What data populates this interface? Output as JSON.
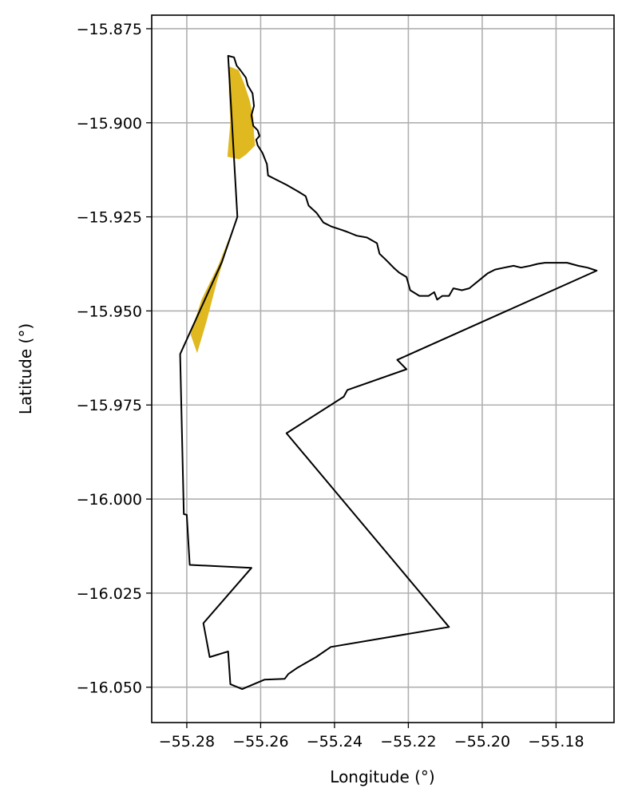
{
  "chart_data": {
    "type": "map",
    "xlabel": "Longitude (°)",
    "ylabel": "Latitude (°)",
    "xlim": [
      -55.2895,
      -55.1643
    ],
    "ylim": [
      -16.0594,
      -15.8714
    ],
    "x_ticks": [
      -55.28,
      -55.26,
      -55.24,
      -55.22,
      -55.2,
      -55.18
    ],
    "x_tick_labels": [
      "−55.28",
      "−55.26",
      "−55.24",
      "−55.22",
      "−55.20",
      "−55.18"
    ],
    "y_ticks": [
      -15.875,
      -15.9,
      -15.925,
      -15.95,
      -15.975,
      -16.0,
      -16.025,
      -16.05
    ],
    "y_tick_labels": [
      "−15.875",
      "−15.900",
      "−15.925",
      "−15.950",
      "−15.975",
      "−16.000",
      "−16.025",
      "−16.050"
    ],
    "grid": true,
    "colors": {
      "boundary": "#000000",
      "highlight": "#e0b820",
      "grid": "#b0b0b0"
    },
    "highlight_polygons": [
      [
        [
          -55.2685,
          -15.885
        ],
        [
          -55.266,
          -15.886
        ],
        [
          -55.2645,
          -15.8895
        ],
        [
          -55.263,
          -15.894
        ],
        [
          -55.262,
          -15.8985
        ],
        [
          -55.2618,
          -15.903
        ],
        [
          -55.2615,
          -15.906
        ],
        [
          -55.264,
          -15.9085
        ],
        [
          -55.2658,
          -15.9097
        ],
        [
          -55.269,
          -15.909
        ],
        [
          -55.2682,
          -15.9
        ],
        [
          -55.2686,
          -15.892
        ]
      ],
      [
        [
          -55.267,
          -15.9268
        ],
        [
          -55.269,
          -15.933
        ],
        [
          -55.2718,
          -15.942
        ],
        [
          -55.2747,
          -15.953
        ],
        [
          -55.2772,
          -15.9612
        ],
        [
          -55.279,
          -15.9562
        ],
        [
          -55.276,
          -15.947
        ],
        [
          -55.2715,
          -15.938
        ]
      ]
    ],
    "boundary": [
      [
        -55.2688,
        -15.8822
      ],
      [
        -55.2672,
        -15.8826
      ],
      [
        -55.2665,
        -15.8848
      ],
      [
        -55.2655,
        -15.886
      ],
      [
        -55.264,
        -15.888
      ],
      [
        -55.2635,
        -15.89
      ],
      [
        -55.2622,
        -15.8922
      ],
      [
        -55.2618,
        -15.8955
      ],
      [
        -55.2625,
        -15.898
      ],
      [
        -55.262,
        -15.9008
      ],
      [
        -55.2608,
        -15.902
      ],
      [
        -55.2603,
        -15.9035
      ],
      [
        -55.2612,
        -15.9045
      ],
      [
        -55.2608,
        -15.906
      ],
      [
        -55.2595,
        -15.908
      ],
      [
        -55.2583,
        -15.911
      ],
      [
        -55.258,
        -15.914
      ],
      [
        -55.256,
        -15.915
      ],
      [
        -55.253,
        -15.9165
      ],
      [
        -55.2498,
        -15.9183
      ],
      [
        -55.2478,
        -15.9195
      ],
      [
        -55.247,
        -15.922
      ],
      [
        -55.2448,
        -15.924
      ],
      [
        -55.243,
        -15.9265
      ],
      [
        -55.241,
        -15.9275
      ],
      [
        -55.238,
        -15.9285
      ],
      [
        -55.2365,
        -15.929
      ],
      [
        -55.234,
        -15.93
      ],
      [
        -55.2312,
        -15.9305
      ],
      [
        -55.2285,
        -15.932
      ],
      [
        -55.2278,
        -15.9348
      ],
      [
        -55.226,
        -15.9365
      ],
      [
        -55.224,
        -15.9385
      ],
      [
        -55.2225,
        -15.9398
      ],
      [
        -55.2205,
        -15.941
      ],
      [
        -55.2195,
        -15.9445
      ],
      [
        -55.217,
        -15.946
      ],
      [
        -55.2145,
        -15.946
      ],
      [
        -55.213,
        -15.945
      ],
      [
        -55.2122,
        -15.947
      ],
      [
        -55.2108,
        -15.946
      ],
      [
        -55.209,
        -15.946
      ],
      [
        -55.2078,
        -15.944
      ],
      [
        -55.2055,
        -15.9445
      ],
      [
        -55.2035,
        -15.944
      ],
      [
        -55.201,
        -15.942
      ],
      [
        -55.1985,
        -15.94
      ],
      [
        -55.1965,
        -15.939
      ],
      [
        -55.194,
        -15.9385
      ],
      [
        -55.1915,
        -15.938
      ],
      [
        -55.1895,
        -15.9385
      ],
      [
        -55.187,
        -15.938
      ],
      [
        -55.185,
        -15.9375
      ],
      [
        -55.183,
        -15.9372
      ],
      [
        -55.18,
        -15.9372
      ],
      [
        -55.177,
        -15.9372
      ],
      [
        -55.174,
        -15.938
      ],
      [
        -55.1715,
        -15.9385
      ],
      [
        -55.169,
        -15.9393
      ],
      [
        -55.223,
        -15.963
      ],
      [
        -55.2205,
        -15.9655
      ],
      [
        -55.2365,
        -15.971
      ],
      [
        -55.2375,
        -15.9728
      ],
      [
        -55.253,
        -15.9825
      ],
      [
        -55.209,
        -16.034
      ],
      [
        -55.241,
        -16.0393
      ],
      [
        -55.245,
        -16.042
      ],
      [
        -55.25,
        -16.0448
      ],
      [
        -55.2525,
        -16.0465
      ],
      [
        -55.2535,
        -16.0478
      ],
      [
        -55.259,
        -16.048
      ],
      [
        -55.265,
        -16.0505
      ],
      [
        -55.2682,
        -16.0492
      ],
      [
        -55.2688,
        -16.0405
      ],
      [
        -55.2738,
        -16.042
      ],
      [
        -55.2755,
        -16.033
      ],
      [
        -55.2625,
        -16.0183
      ],
      [
        -55.2792,
        -16.0175
      ],
      [
        -55.28,
        -16.0042
      ],
      [
        -55.2808,
        -16.004
      ],
      [
        -55.2818,
        -15.9615
      ],
      [
        -55.2705,
        -15.937
      ],
      [
        -55.2663,
        -15.925
      ],
      [
        -55.2688,
        -15.8822
      ]
    ]
  }
}
